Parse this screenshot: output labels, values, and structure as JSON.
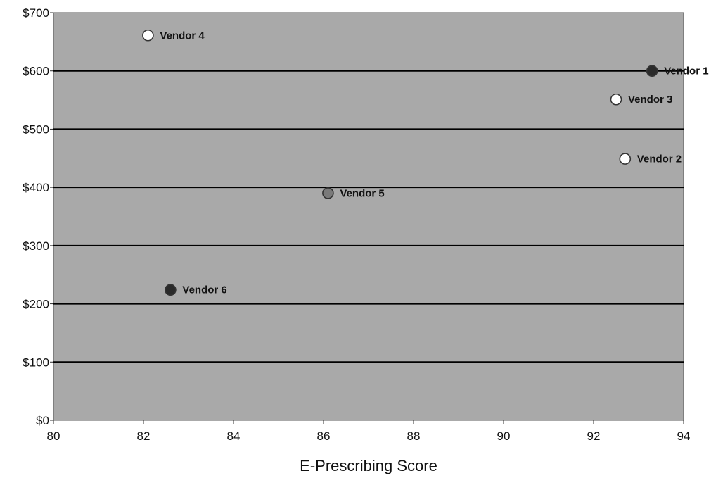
{
  "chart_data": {
    "type": "scatter",
    "title": "",
    "xlabel": "E-Prescribing Score",
    "ylabel": "",
    "xlim": [
      80,
      94
    ],
    "ylim": [
      0,
      700
    ],
    "x_ticks": [
      80,
      82,
      84,
      86,
      88,
      90,
      92,
      94
    ],
    "y_ticks": [
      0,
      100,
      200,
      300,
      400,
      500,
      600,
      700
    ],
    "y_tick_labels": [
      "$0",
      "$100",
      "$200",
      "$300",
      "$400",
      "$500",
      "$600",
      "$700"
    ],
    "grid": "horizontal",
    "background": "#a9a9a9",
    "points": [
      {
        "label": "Vendor 1",
        "x": 93.3,
        "y": 600,
        "fill": "#2a2a2a"
      },
      {
        "label": "Vendor 2",
        "x": 92.7,
        "y": 449,
        "fill": "#ffffff"
      },
      {
        "label": "Vendor 3",
        "x": 92.5,
        "y": 551,
        "fill": "#ffffff"
      },
      {
        "label": "Vendor 4",
        "x": 82.1,
        "y": 661,
        "fill": "#ffffff"
      },
      {
        "label": "Vendor 5",
        "x": 86.1,
        "y": 390,
        "fill": "#7a7a7a"
      },
      {
        "label": "Vendor 6",
        "x": 82.6,
        "y": 224,
        "fill": "#2a2a2a"
      }
    ]
  }
}
